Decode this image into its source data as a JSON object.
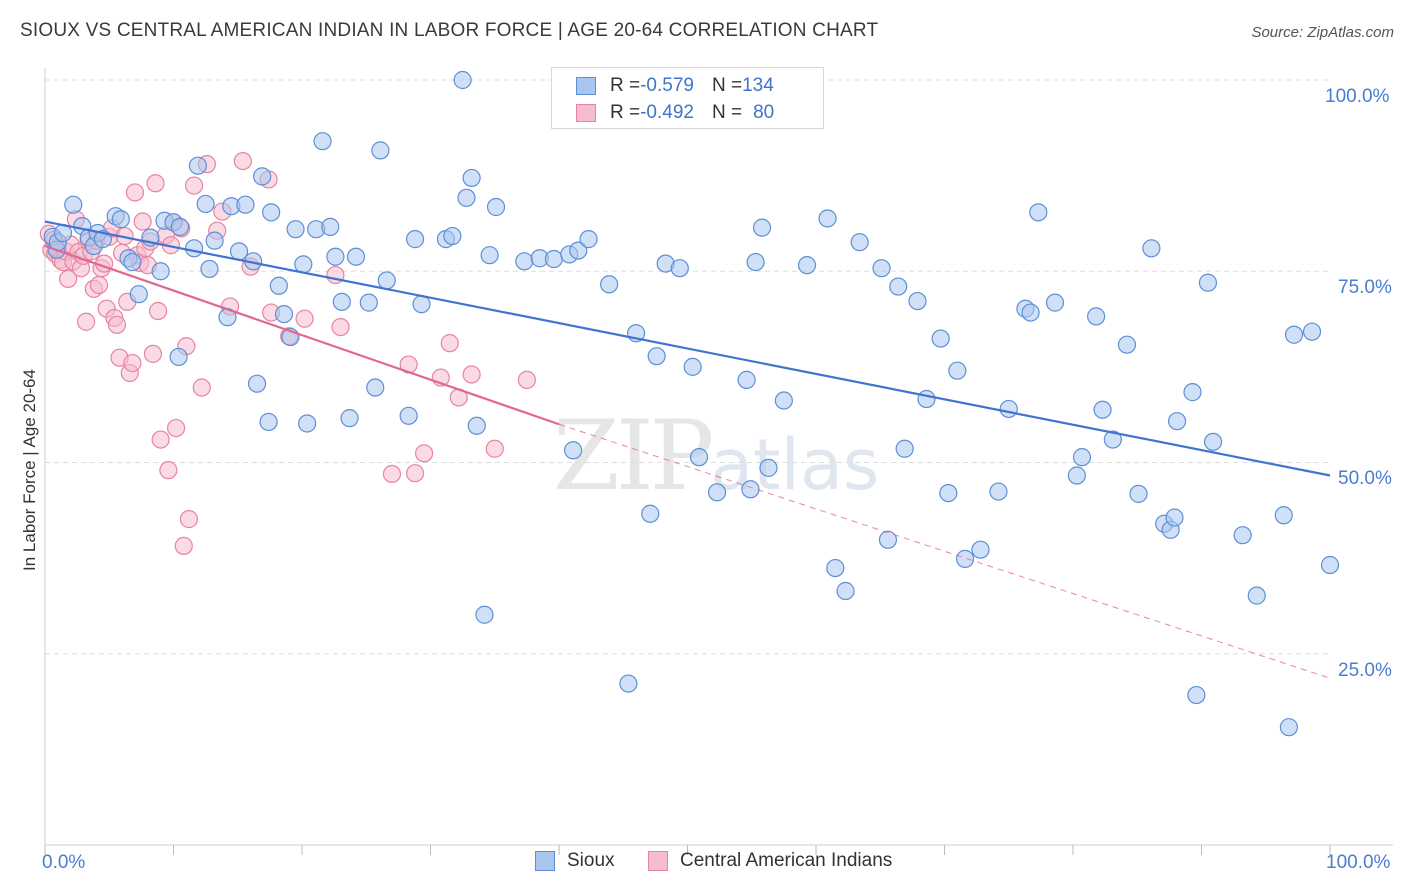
{
  "title": "SIOUX VS CENTRAL AMERICAN INDIAN IN LABOR FORCE | AGE 20-64 CORRELATION CHART",
  "source": "Source: ZipAtlas.com",
  "watermark": {
    "zip": "ZIP",
    "atlas": "atlas"
  },
  "legend": {
    "rows": [
      {
        "r_label": "R = ",
        "r_value": "-0.579",
        "n_label": "N = ",
        "n_value": "134"
      },
      {
        "r_label": "R = ",
        "r_value": "-0.492",
        "n_label": "N = ",
        "n_value": "80"
      }
    ]
  },
  "colors": {
    "sioux_fill": "#a9c6ef",
    "sioux_stroke": "#5e8fd6",
    "sioux_line": "#3f74d0",
    "cai_fill": "#f6bcd0",
    "cai_stroke": "#e8849f",
    "cai_line": "#e06890",
    "grid": "#dddddd",
    "tick_text": "#4a7ccf"
  },
  "chart_data": {
    "type": "scatter",
    "title": "SIOUX VS CENTRAL AMERICAN INDIAN IN LABOR FORCE | AGE 20-64 CORRELATION CHART",
    "xlabel": "",
    "ylabel": "In Labor Force | Age 20-64",
    "xlim": [
      0,
      100
    ],
    "ylim": [
      0,
      100
    ],
    "x_tick_labels": {
      "left": "0.0%",
      "right": "100.0%"
    },
    "y_tick_labels": [
      "100.0%",
      "75.0%",
      "50.0%",
      "25.0%"
    ],
    "y_tick_values": [
      100,
      75,
      50,
      25
    ],
    "legend_position": "top-center",
    "series": [
      {
        "name": "Sioux",
        "r": -0.579,
        "n": 134,
        "trend": {
          "x": [
            0,
            100
          ],
          "y": [
            81.5,
            48.3
          ]
        },
        "points": [
          [
            0.6,
            79.5
          ],
          [
            0.9,
            77.8
          ],
          [
            1.0,
            78.8
          ],
          [
            1.4,
            80.0
          ],
          [
            2.2,
            83.7
          ],
          [
            2.9,
            80.9
          ],
          [
            3.4,
            79.4
          ],
          [
            3.8,
            78.3
          ],
          [
            4.1,
            80.0
          ],
          [
            4.5,
            79.2
          ],
          [
            5.5,
            82.2
          ],
          [
            5.9,
            81.8
          ],
          [
            6.5,
            76.7
          ],
          [
            6.8,
            76.2
          ],
          [
            7.3,
            72.0
          ],
          [
            8.2,
            79.4
          ],
          [
            9.0,
            75.0
          ],
          [
            9.3,
            81.6
          ],
          [
            10.0,
            81.4
          ],
          [
            10.5,
            80.8
          ],
          [
            10.4,
            63.8
          ],
          [
            11.6,
            78.0
          ],
          [
            11.9,
            88.8
          ],
          [
            12.5,
            83.8
          ],
          [
            12.8,
            75.3
          ],
          [
            13.2,
            79.0
          ],
          [
            14.2,
            69.0
          ],
          [
            14.5,
            83.5
          ],
          [
            15.1,
            77.6
          ],
          [
            15.6,
            83.7
          ],
          [
            16.2,
            76.3
          ],
          [
            16.5,
            60.3
          ],
          [
            16.9,
            87.4
          ],
          [
            17.4,
            55.3
          ],
          [
            17.6,
            82.7
          ],
          [
            18.2,
            73.1
          ],
          [
            18.6,
            69.4
          ],
          [
            19.1,
            66.4
          ],
          [
            19.5,
            80.5
          ],
          [
            20.1,
            75.9
          ],
          [
            20.4,
            55.1
          ],
          [
            21.1,
            80.5
          ],
          [
            21.6,
            92.0
          ],
          [
            22.2,
            80.8
          ],
          [
            22.6,
            76.9
          ],
          [
            23.1,
            71.0
          ],
          [
            23.7,
            55.8
          ],
          [
            24.2,
            76.9
          ],
          [
            25.2,
            70.9
          ],
          [
            25.7,
            59.8
          ],
          [
            26.1,
            90.8
          ],
          [
            26.6,
            73.8
          ],
          [
            28.3,
            56.1
          ],
          [
            28.8,
            79.2
          ],
          [
            29.3,
            70.7
          ],
          [
            31.2,
            79.2
          ],
          [
            31.7,
            79.6
          ],
          [
            32.5,
            100.0
          ],
          [
            32.8,
            84.6
          ],
          [
            33.2,
            87.2
          ],
          [
            33.6,
            54.8
          ],
          [
            34.2,
            30.1
          ],
          [
            34.6,
            77.1
          ],
          [
            35.1,
            83.4
          ],
          [
            37.3,
            76.3
          ],
          [
            38.5,
            76.7
          ],
          [
            39.6,
            76.6
          ],
          [
            40.8,
            77.2
          ],
          [
            41.1,
            51.6
          ],
          [
            41.5,
            77.7
          ],
          [
            42.3,
            79.2
          ],
          [
            43.9,
            73.3
          ],
          [
            45.4,
            21.1
          ],
          [
            46.0,
            66.9
          ],
          [
            47.1,
            43.3
          ],
          [
            47.6,
            63.9
          ],
          [
            48.3,
            76.0
          ],
          [
            49.4,
            75.4
          ],
          [
            50.4,
            62.5
          ],
          [
            50.9,
            50.7
          ],
          [
            52.3,
            46.1
          ],
          [
            54.6,
            60.8
          ],
          [
            54.9,
            46.5
          ],
          [
            55.3,
            76.2
          ],
          [
            55.8,
            80.7
          ],
          [
            56.3,
            49.3
          ],
          [
            57.5,
            58.1
          ],
          [
            59.3,
            75.8
          ],
          [
            60.9,
            81.9
          ],
          [
            61.5,
            36.2
          ],
          [
            62.3,
            33.2
          ],
          [
            63.4,
            78.8
          ],
          [
            65.1,
            75.4
          ],
          [
            65.6,
            39.9
          ],
          [
            66.4,
            73.0
          ],
          [
            66.9,
            51.8
          ],
          [
            67.9,
            71.1
          ],
          [
            68.6,
            58.3
          ],
          [
            69.7,
            66.2
          ],
          [
            70.3,
            46.0
          ],
          [
            71.0,
            62.0
          ],
          [
            71.6,
            37.4
          ],
          [
            72.8,
            38.6
          ],
          [
            74.2,
            46.2
          ],
          [
            75.0,
            57.0
          ],
          [
            76.3,
            70.1
          ],
          [
            76.7,
            69.6
          ],
          [
            77.3,
            82.7
          ],
          [
            78.6,
            70.9
          ],
          [
            80.3,
            48.3
          ],
          [
            80.7,
            50.7
          ],
          [
            81.8,
            69.1
          ],
          [
            82.3,
            56.9
          ],
          [
            83.1,
            53.0
          ],
          [
            84.2,
            65.4
          ],
          [
            85.1,
            45.9
          ],
          [
            86.1,
            78.0
          ],
          [
            87.1,
            42.0
          ],
          [
            87.6,
            41.2
          ],
          [
            87.9,
            42.8
          ],
          [
            88.1,
            55.4
          ],
          [
            89.3,
            59.2
          ],
          [
            89.6,
            19.6
          ],
          [
            90.5,
            73.5
          ],
          [
            90.9,
            52.7
          ],
          [
            93.2,
            40.5
          ],
          [
            94.3,
            32.6
          ],
          [
            96.4,
            43.1
          ],
          [
            96.8,
            15.4
          ],
          [
            97.2,
            66.7
          ],
          [
            98.6,
            67.1
          ],
          [
            100.0,
            36.6
          ]
        ]
      },
      {
        "name": "Central American Indians",
        "r": -0.492,
        "n": 80,
        "trend": {
          "x": [
            0,
            40
          ],
          "y": [
            78.3,
            55.0
          ]
        },
        "trend_extension": {
          "x": [
            40,
            100
          ],
          "y": [
            55.0,
            21.8
          ]
        },
        "points": [
          [
            0.3,
            79.9
          ],
          [
            0.5,
            77.8
          ],
          [
            0.7,
            79.1
          ],
          [
            0.8,
            77.3
          ],
          [
            1.0,
            78.0
          ],
          [
            1.2,
            76.5
          ],
          [
            1.4,
            76.2
          ],
          [
            1.6,
            77.6
          ],
          [
            1.8,
            74.0
          ],
          [
            2.0,
            78.5
          ],
          [
            2.2,
            76.3
          ],
          [
            2.4,
            81.8
          ],
          [
            2.6,
            77.5
          ],
          [
            2.8,
            75.4
          ],
          [
            3.0,
            77.0
          ],
          [
            3.2,
            68.4
          ],
          [
            3.4,
            78.9
          ],
          [
            3.6,
            77.6
          ],
          [
            3.8,
            72.7
          ],
          [
            4.0,
            79.0
          ],
          [
            4.2,
            73.2
          ],
          [
            4.4,
            75.4
          ],
          [
            4.6,
            76.0
          ],
          [
            4.8,
            70.1
          ],
          [
            5.0,
            79.5
          ],
          [
            5.2,
            80.6
          ],
          [
            5.4,
            68.9
          ],
          [
            5.6,
            68.0
          ],
          [
            5.8,
            63.7
          ],
          [
            6.0,
            77.4
          ],
          [
            6.2,
            79.6
          ],
          [
            6.4,
            71.0
          ],
          [
            6.6,
            61.7
          ],
          [
            6.8,
            63.0
          ],
          [
            7.0,
            85.3
          ],
          [
            7.2,
            77.1
          ],
          [
            7.4,
            76.1
          ],
          [
            7.6,
            81.5
          ],
          [
            7.8,
            78.0
          ],
          [
            8.0,
            75.8
          ],
          [
            8.2,
            78.9
          ],
          [
            8.4,
            64.2
          ],
          [
            8.6,
            86.5
          ],
          [
            8.8,
            69.8
          ],
          [
            9.0,
            53.0
          ],
          [
            9.4,
            79.7
          ],
          [
            9.6,
            49.0
          ],
          [
            9.8,
            78.4
          ],
          [
            10.0,
            81.4
          ],
          [
            10.2,
            54.5
          ],
          [
            10.6,
            80.6
          ],
          [
            10.8,
            39.1
          ],
          [
            11.0,
            65.2
          ],
          [
            11.2,
            42.6
          ],
          [
            11.6,
            86.2
          ],
          [
            12.2,
            59.8
          ],
          [
            12.6,
            89.0
          ],
          [
            13.4,
            80.3
          ],
          [
            13.8,
            82.8
          ],
          [
            14.4,
            70.4
          ],
          [
            15.4,
            89.4
          ],
          [
            16.0,
            75.6
          ],
          [
            17.4,
            87.0
          ],
          [
            17.6,
            69.6
          ],
          [
            19.0,
            66.5
          ],
          [
            20.2,
            68.8
          ],
          [
            22.6,
            74.5
          ],
          [
            23.0,
            67.7
          ],
          [
            27.0,
            48.5
          ],
          [
            28.3,
            62.8
          ],
          [
            28.8,
            48.6
          ],
          [
            29.5,
            51.2
          ],
          [
            30.8,
            61.1
          ],
          [
            31.5,
            65.6
          ],
          [
            32.2,
            58.5
          ],
          [
            33.2,
            61.5
          ],
          [
            35.0,
            51.8
          ],
          [
            37.5,
            60.8
          ]
        ]
      }
    ]
  }
}
